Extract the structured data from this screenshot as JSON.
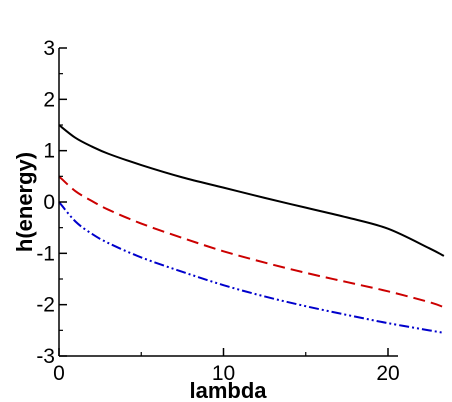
{
  "chart_data": {
    "type": "line",
    "title": "",
    "xlabel": "lambda",
    "ylabel": "h(energy)",
    "xlim": [
      0,
      25
    ],
    "ylim": [
      -3,
      3
    ],
    "x_ticks": [
      0,
      10,
      20
    ],
    "y_ticks": [
      -3,
      -2,
      -1,
      0,
      1,
      2,
      3
    ],
    "x_tick_labels": [
      "0",
      "10",
      "20"
    ],
    "y_tick_labels": [
      "-3",
      "-2",
      "-1",
      "0",
      "1",
      "2",
      "3"
    ],
    "grid": false,
    "legend": "none",
    "x": [
      0,
      1,
      2,
      3,
      5,
      7.5,
      10,
      12.5,
      15,
      17.5,
      20,
      22.5,
      23.4
    ],
    "series": [
      {
        "color": "#000000",
        "dash": "solid",
        "values": [
          1.5,
          1.25,
          1.08,
          0.94,
          0.72,
          0.48,
          0.28,
          0.08,
          -0.11,
          -0.3,
          -0.52,
          -0.9,
          -1.05
        ]
      },
      {
        "color": "#cc0000",
        "dash": "dashed",
        "values": [
          0.5,
          0.21,
          0.02,
          -0.15,
          -0.42,
          -0.7,
          -0.96,
          -1.18,
          -1.38,
          -1.56,
          -1.74,
          -1.95,
          -2.05
        ]
      },
      {
        "color": "#0000cc",
        "dash": "dash-dot-dot",
        "values": [
          0.0,
          -0.38,
          -0.62,
          -0.8,
          -1.08,
          -1.36,
          -1.62,
          -1.84,
          -2.03,
          -2.2,
          -2.36,
          -2.5,
          -2.55
        ]
      }
    ]
  }
}
